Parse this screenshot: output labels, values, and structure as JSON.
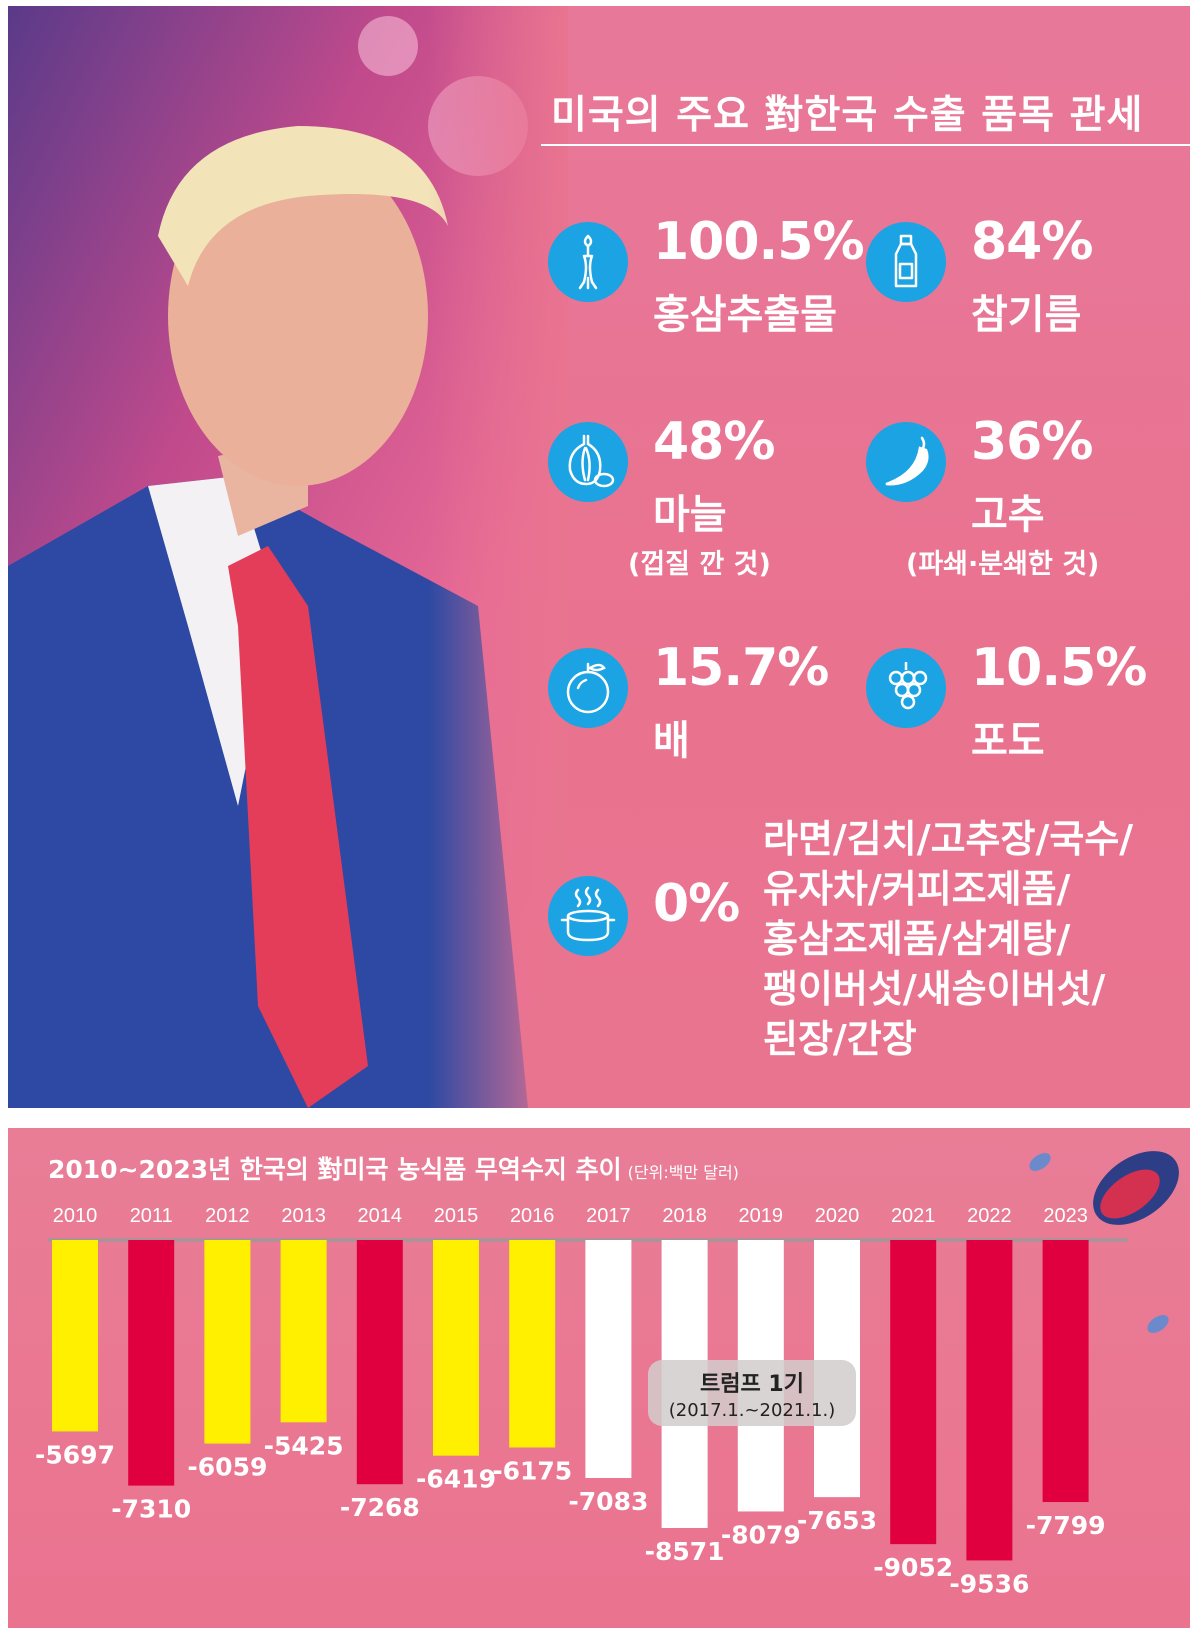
{
  "top_panel": {
    "title": "미국의 주요 對한국 수출 품목 관세",
    "tariffs": [
      {
        "rate": "100.5%",
        "item": "홍삼추출물",
        "note": "",
        "icon": "ginseng-icon"
      },
      {
        "rate": "84%",
        "item": "참기름",
        "note": "",
        "icon": "sesame-oil-bottle-icon"
      },
      {
        "rate": "48%",
        "item": "마늘",
        "note": "(껍질 깐 것)",
        "icon": "garlic-icon"
      },
      {
        "rate": "36%",
        "item": "고추",
        "note": "(파쇄·분쇄한 것)",
        "icon": "chili-pepper-icon"
      },
      {
        "rate": "15.7%",
        "item": "배",
        "note": "",
        "icon": "pear-icon"
      },
      {
        "rate": "10.5%",
        "item": "포도",
        "note": "",
        "icon": "grapes-icon"
      }
    ],
    "zero_tariff": {
      "rate": "0%",
      "icon": "cooking-pot-icon",
      "lines": [
        "라면/김치/고추장/국수/",
        "유자차/커피조제품/",
        "홍삼조제품/삼계탕/",
        "팽이버섯/새송이버섯/",
        "된장/간장"
      ]
    },
    "icon_color": "#1ba3e3"
  },
  "chart_panel": {
    "title": "2010~2023년 한국의 對미국 농식품 무역수지 추이",
    "unit": "(단위:백만 달러)",
    "period_box": {
      "title": "트럼프 1기",
      "range": "(2017.1.~2021.1.)"
    }
  },
  "chart_data": {
    "type": "bar",
    "title": "2010~2023년 한국의 對미국 농식품 무역수지 추이",
    "unit": "(단위:백만 달러)",
    "categories": [
      "2010",
      "2011",
      "2012",
      "2013",
      "2014",
      "2015",
      "2016",
      "2017",
      "2018",
      "2019",
      "2020",
      "2021",
      "2022",
      "2023"
    ],
    "values": [
      -5697,
      -7310,
      -6059,
      -5425,
      -7268,
      -6419,
      -6175,
      -7083,
      -8571,
      -8079,
      -7653,
      -9052,
      -9536,
      -7799
    ],
    "bar_colors": [
      "#fff000",
      "#e0003f",
      "#fff000",
      "#fff000",
      "#e0003f",
      "#fff000",
      "#fff000",
      "#ffffff",
      "#ffffff",
      "#ffffff",
      "#ffffff",
      "#e0003f",
      "#e0003f",
      "#e0003f"
    ],
    "ylim": [
      -10000,
      0
    ]
  }
}
